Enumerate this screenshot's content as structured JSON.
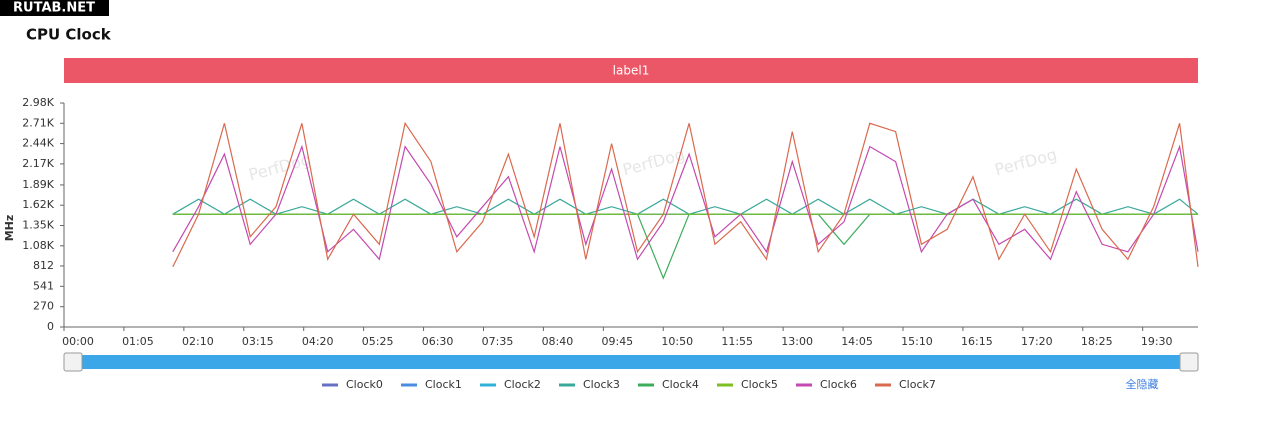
{
  "header": {
    "watermark": "RUTAB.NET"
  },
  "chart_data": {
    "type": "line",
    "title": "CPU Clock",
    "band_label": "label1",
    "y_label": "MHz",
    "watermarks": [
      "PerfDog",
      "PerfDog",
      "PerfDog"
    ],
    "hide_all": "全隐藏",
    "xlim": [
      0,
      1230
    ],
    "ylim": [
      0,
      2980
    ],
    "xticks": [
      {
        "value": 0,
        "label": "00:00"
      },
      {
        "value": 65,
        "label": "01:05"
      },
      {
        "value": 130,
        "label": "02:10"
      },
      {
        "value": 195,
        "label": "03:15"
      },
      {
        "value": 260,
        "label": "04:20"
      },
      {
        "value": 325,
        "label": "05:25"
      },
      {
        "value": 390,
        "label": "06:30"
      },
      {
        "value": 455,
        "label": "07:35"
      },
      {
        "value": 520,
        "label": "08:40"
      },
      {
        "value": 585,
        "label": "09:45"
      },
      {
        "value": 650,
        "label": "10:50"
      },
      {
        "value": 715,
        "label": "11:55"
      },
      {
        "value": 780,
        "label": "13:00"
      },
      {
        "value": 845,
        "label": "14:05"
      },
      {
        "value": 910,
        "label": "15:10"
      },
      {
        "value": 975,
        "label": "16:15"
      },
      {
        "value": 1040,
        "label": "17:20"
      },
      {
        "value": 1105,
        "label": "18:25"
      },
      {
        "value": 1170,
        "label": "19:30"
      }
    ],
    "yticks": [
      0,
      270,
      541,
      812,
      {
        "value": 1080,
        "label": "1.08K"
      },
      {
        "value": 1350,
        "label": "1.35K"
      },
      {
        "value": 1620,
        "label": "1.62K"
      },
      {
        "value": 1890,
        "label": "1.89K"
      },
      {
        "value": 2170,
        "label": "2.17K"
      },
      {
        "value": 2440,
        "label": "2.44K"
      },
      {
        "value": 2710,
        "label": "2.71K"
      },
      {
        "value": 2980,
        "label": "2.98K"
      }
    ],
    "x": [
      118,
      146,
      174,
      202,
      230,
      258,
      286,
      314,
      342,
      370,
      398,
      426,
      454,
      482,
      510,
      538,
      566,
      594,
      622,
      650,
      678,
      706,
      734,
      762,
      790,
      818,
      846,
      874,
      902,
      930,
      958,
      986,
      1014,
      1042,
      1070,
      1098,
      1126,
      1154,
      1182,
      1210,
      1230
    ],
    "series": [
      {
        "name": "Clock0",
        "color": "#6670c4",
        "values": [
          1500,
          1500,
          1500,
          1500,
          1500,
          1500,
          1500,
          1500,
          1500,
          1500,
          1500,
          1500,
          1500,
          1500,
          1500,
          1500,
          1500,
          1500,
          1500,
          1500,
          1500,
          1500,
          1500,
          1500,
          1500,
          1500,
          1500,
          1500,
          1500,
          1500,
          1500,
          1500,
          1500,
          1500,
          1500,
          1500,
          1500,
          1500,
          1500,
          1500,
          1500
        ]
      },
      {
        "name": "Clock1",
        "color": "#4a8de0",
        "values": [
          1500,
          1500,
          1500,
          1500,
          1500,
          1500,
          1500,
          1500,
          1500,
          1500,
          1500,
          1500,
          1500,
          1500,
          1500,
          1500,
          1500,
          1500,
          1500,
          1500,
          1500,
          1500,
          1500,
          1500,
          1500,
          1500,
          1500,
          1500,
          1500,
          1500,
          1500,
          1500,
          1500,
          1500,
          1500,
          1500,
          1500,
          1500,
          1500,
          1500,
          1500
        ]
      },
      {
        "name": "Clock2",
        "color": "#2fb1d8",
        "values": [
          1500,
          1500,
          1500,
          1500,
          1500,
          1500,
          1500,
          1500,
          1500,
          1500,
          1500,
          1500,
          1500,
          1500,
          1500,
          1500,
          1500,
          1500,
          1500,
          1500,
          1500,
          1500,
          1500,
          1500,
          1500,
          1500,
          1500,
          1500,
          1500,
          1500,
          1500,
          1500,
          1500,
          1500,
          1500,
          1500,
          1500,
          1500,
          1500,
          1500,
          1500
        ]
      },
      {
        "name": "Clock3",
        "color": "#3aa89a",
        "values": [
          1500,
          1700,
          1500,
          1700,
          1500,
          1600,
          1500,
          1700,
          1500,
          1700,
          1500,
          1600,
          1500,
          1700,
          1500,
          1700,
          1500,
          1600,
          1500,
          1700,
          1500,
          1600,
          1500,
          1700,
          1500,
          1700,
          1500,
          1700,
          1500,
          1600,
          1500,
          1700,
          1500,
          1600,
          1500,
          1700,
          1500,
          1600,
          1500,
          1700,
          1500
        ]
      },
      {
        "name": "Clock4",
        "color": "#3dad5a",
        "values": [
          1500,
          1500,
          1500,
          1500,
          1500,
          1500,
          1500,
          1500,
          1500,
          1500,
          1500,
          1500,
          1500,
          1500,
          1500,
          1500,
          1500,
          1500,
          1500,
          650,
          1500,
          1500,
          1500,
          1500,
          1500,
          1500,
          1100,
          1500,
          1500,
          1500,
          1500,
          1500,
          1500,
          1500,
          1500,
          1500,
          1500,
          1500,
          1500,
          1500,
          1500
        ]
      },
      {
        "name": "Clock5",
        "color": "#7cbf22",
        "values": [
          1500,
          1500,
          1500,
          1500,
          1500,
          1500,
          1500,
          1500,
          1500,
          1500,
          1500,
          1500,
          1500,
          1500,
          1500,
          1500,
          1500,
          1500,
          1500,
          1500,
          1500,
          1500,
          1500,
          1500,
          1500,
          1500,
          1500,
          1500,
          1500,
          1500,
          1500,
          1500,
          1500,
          1500,
          1500,
          1500,
          1500,
          1500,
          1500,
          1500,
          1500
        ]
      },
      {
        "name": "Clock6",
        "color": "#c44ab0",
        "values": [
          1000,
          1600,
          2300,
          1100,
          1500,
          2400,
          1000,
          1300,
          900,
          2400,
          1900,
          1200,
          1600,
          2000,
          1000,
          2400,
          1100,
          2100,
          900,
          1400,
          2300,
          1200,
          1500,
          1000,
          2200,
          1100,
          1400,
          2400,
          2200,
          1000,
          1500,
          1700,
          1100,
          1300,
          900,
          1800,
          1100,
          1000,
          1500,
          2400,
          1000
        ]
      },
      {
        "name": "Clock7",
        "color": "#d9694f",
        "values": [
          800,
          1500,
          2710,
          1200,
          1600,
          2710,
          900,
          1500,
          1100,
          2710,
          2200,
          1000,
          1400,
          2300,
          1200,
          2710,
          900,
          2440,
          1000,
          1500,
          2710,
          1100,
          1400,
          900,
          2600,
          1000,
          1500,
          2710,
          2600,
          1100,
          1300,
          2000,
          900,
          1500,
          1000,
          2100,
          1300,
          900,
          1600,
          2710,
          800
        ]
      }
    ]
  }
}
